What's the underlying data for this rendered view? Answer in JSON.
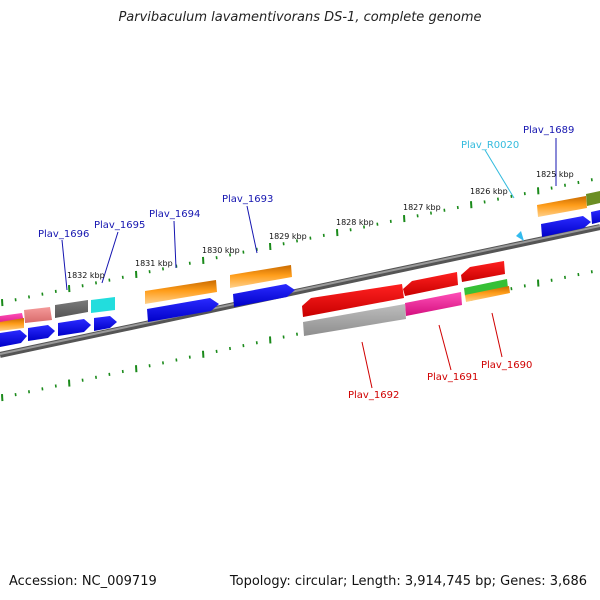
{
  "title": "Parvibaculum lavamentivorans DS-1, complete genome",
  "footer": {
    "accession": "Accession: NC_009719",
    "topology": "Topology: circular; Length: 3,914,745 bp; Genes: 3,686"
  },
  "colors": {
    "backbone": "#7a7a7a",
    "tick": "#1a8a1a",
    "forward_label": "#1515b0",
    "reverse_label": "#d00000",
    "rna_label": "#33bbdd"
  },
  "ruler_labels": [
    "1825 kbp",
    "1826 kbp",
    "1827 kbp",
    "1828 kbp",
    "1829 kbp",
    "1830 kbp",
    "1831 kbp",
    "1832 kbp"
  ],
  "gene_labels": {
    "forward": [
      "Plav_1689",
      "Plav_1693",
      "Plav_1694",
      "Plav_1695",
      "Plav_1696"
    ],
    "rna": [
      "Plav_R0020"
    ],
    "reverse": [
      "Plav_1690",
      "Plav_1691",
      "Plav_1692"
    ]
  }
}
